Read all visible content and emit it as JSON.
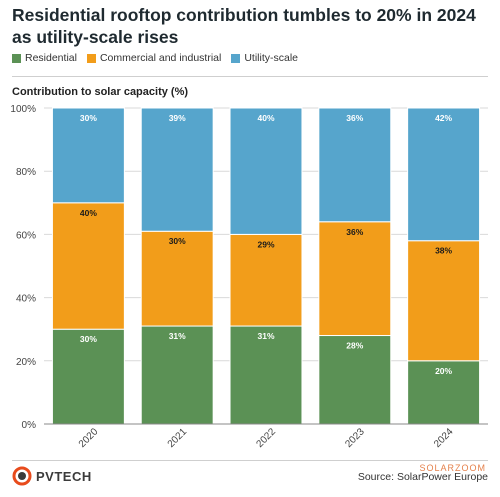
{
  "title": "Residential rooftop contribution tumbles to 20% in 2024 as utility-scale rises",
  "legend": [
    {
      "label": "Residential",
      "color": "#5b9155"
    },
    {
      "label": "Commercial and industrial",
      "color": "#f29d1a"
    },
    {
      "label": "Utility-scale",
      "color": "#56a5cc"
    }
  ],
  "footer": {
    "logo": "PVTECH",
    "source": "Source: SolarPower Europe",
    "watermark": "SOLARZOOM"
  },
  "chart_data": {
    "type": "bar",
    "stacked": true,
    "ylabel": "Contribution to solar capacity (%)",
    "ylim": [
      0,
      100
    ],
    "yticks": [
      "0%",
      "20%",
      "40%",
      "60%",
      "80%",
      "100%"
    ],
    "categories": [
      "2020",
      "2021",
      "2022",
      "2023",
      "2024"
    ],
    "series": [
      {
        "name": "Residential",
        "color": "#5b9155",
        "values": [
          30,
          31,
          31,
          28,
          20
        ],
        "labels": [
          "30%",
          "31%",
          "31%",
          "28%",
          "20%"
        ],
        "label_color": "#ffffff"
      },
      {
        "name": "Commercial and industrial",
        "color": "#f29d1a",
        "values": [
          40,
          30,
          29,
          36,
          38
        ],
        "labels": [
          "40%",
          "30%",
          "29%",
          "36%",
          "38%"
        ],
        "label_color": "#1a1a1a"
      },
      {
        "name": "Utility-scale",
        "color": "#56a5cc",
        "values": [
          30,
          39,
          40,
          36,
          42
        ],
        "labels": [
          "30%",
          "39%",
          "40%",
          "36%",
          "42%"
        ],
        "label_color": "#ffffff"
      }
    ],
    "grid": true,
    "legend_position": "top-left"
  }
}
